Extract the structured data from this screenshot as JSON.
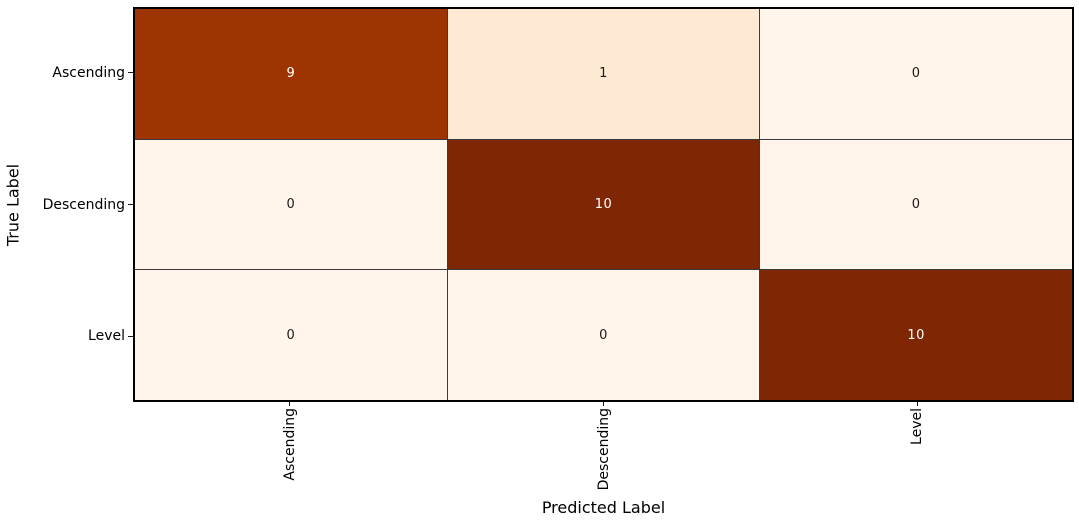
{
  "chart_data": {
    "type": "heatmap",
    "xlabel": "Predicted Label",
    "ylabel": "True Label",
    "x_categories": [
      "Ascending",
      "Descending",
      "Level"
    ],
    "y_categories": [
      "Ascending",
      "Descending",
      "Level"
    ],
    "matrix": [
      [
        9,
        1,
        0
      ],
      [
        0,
        10,
        0
      ],
      [
        0,
        0,
        10
      ]
    ],
    "cell_colors": [
      [
        "#9e3303",
        "#fee9d4",
        "#fff5eb"
      ],
      [
        "#fff5eb",
        "#7f2704",
        "#fff5eb"
      ],
      [
        "#fff5eb",
        "#fff5eb",
        "#7f2704"
      ]
    ],
    "text_colors": [
      [
        "#ffffff",
        "#1a1a1a",
        "#1a1a1a"
      ],
      [
        "#1a1a1a",
        "#ffffff",
        "#1a1a1a"
      ],
      [
        "#1a1a1a",
        "#1a1a1a",
        "#ffffff"
      ]
    ],
    "border_color": "#000000",
    "gridline_color": "#3a3a3a",
    "background_color": "#ffffff",
    "legend": "none",
    "grid": "off"
  }
}
